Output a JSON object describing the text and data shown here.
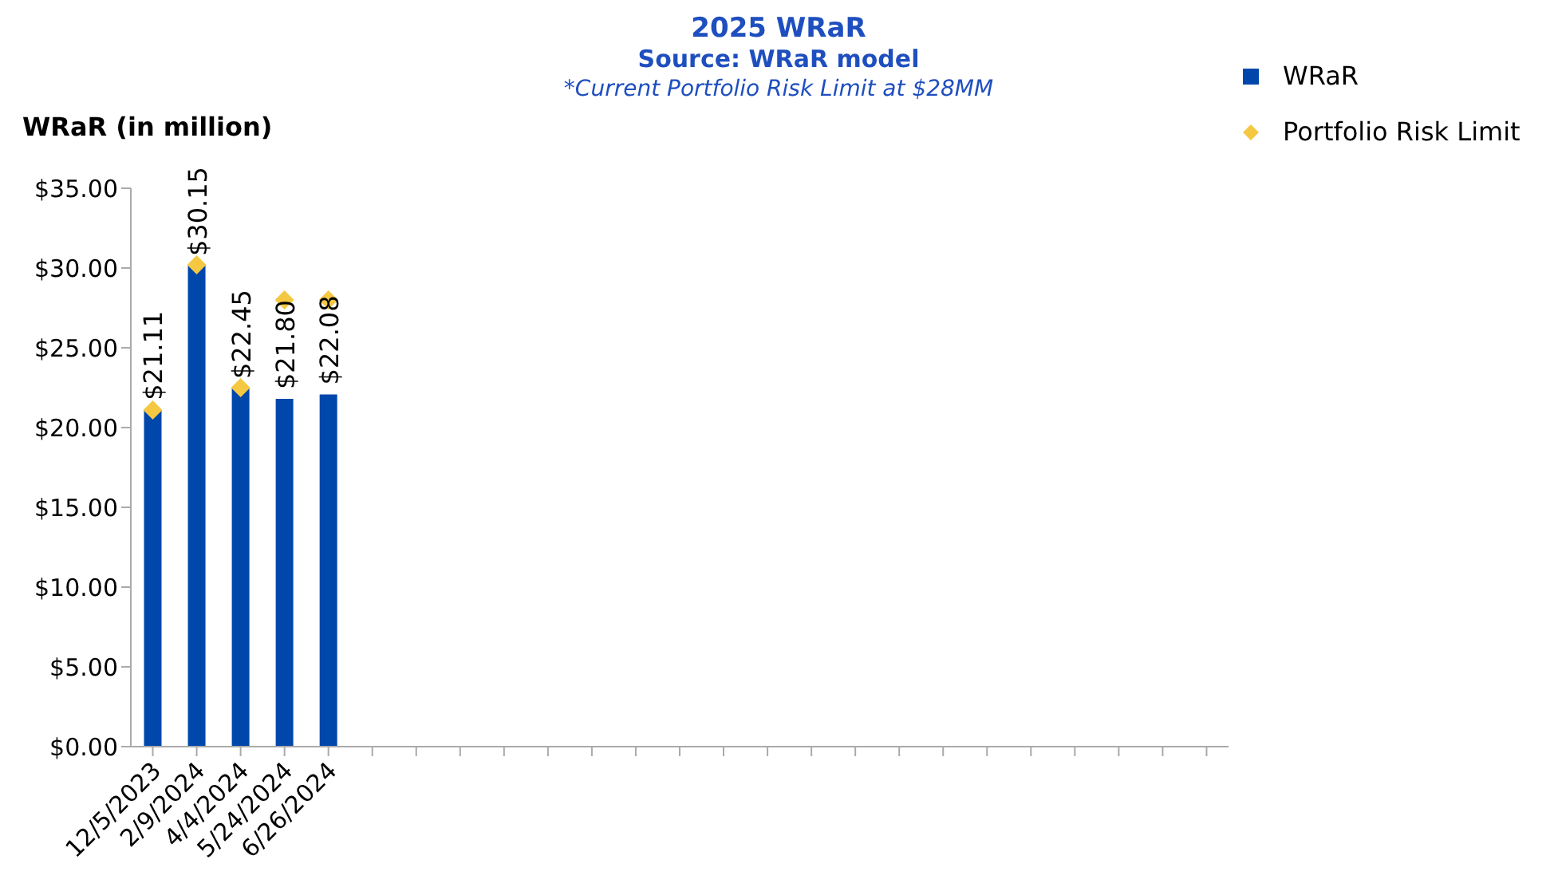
{
  "chart_data": {
    "type": "bar",
    "title": "2025 WRaR",
    "subtitle": "Source: WRaR model",
    "annotations": [
      "*Current Portfolio Risk Limit at $28MM"
    ],
    "ylabel": "WRaR (in million)",
    "categories": [
      "12/5/2023",
      "2/9/2024",
      "4/4/2024",
      "5/24/2024",
      "6/26/2024",
      null,
      null,
      null,
      null,
      null,
      null,
      null,
      null,
      null,
      null,
      null,
      null,
      null,
      null,
      null,
      null,
      null,
      null,
      null,
      null
    ],
    "series": [
      {
        "name": "WRaR",
        "color": "#0047ab",
        "values": [
          21.11,
          30.15,
          22.45,
          21.8,
          22.08,
          null,
          null,
          null,
          null,
          null,
          null,
          null,
          null,
          null,
          null,
          null,
          null,
          null,
          null,
          null,
          null,
          null,
          null,
          null,
          null
        ],
        "value_labels": [
          "$21.11",
          "$30.15",
          "$22.45",
          "$21.80",
          "$22.08",
          null,
          null,
          null,
          null,
          null,
          null,
          null,
          null,
          null,
          null,
          null,
          null,
          null,
          null,
          null,
          null,
          null,
          null,
          null,
          null
        ]
      },
      {
        "name": "Portfolio Risk Limit",
        "type": "scatter",
        "marker": "diamond",
        "color": "#f5c842",
        "values": [
          21.1,
          30.2,
          22.5,
          28,
          28,
          null,
          null,
          null,
          null,
          null,
          null,
          null,
          null,
          null,
          null,
          null,
          null,
          null,
          null,
          null,
          null,
          null,
          null,
          null,
          null
        ]
      }
    ],
    "ylim": [
      0,
      35
    ],
    "yticks": [
      {
        "value": 0,
        "label": "$0.00"
      },
      {
        "value": 5,
        "label": "$5.00"
      },
      {
        "value": 10,
        "label": "$10.00"
      },
      {
        "value": 15,
        "label": "$15.00"
      },
      {
        "value": 20,
        "label": "$20.00"
      },
      {
        "value": 25,
        "label": "$25.00"
      },
      {
        "value": 30,
        "label": "$30.00"
      },
      {
        "value": 35,
        "label": "$35.00"
      }
    ],
    "grid": false,
    "legend": "top right"
  }
}
